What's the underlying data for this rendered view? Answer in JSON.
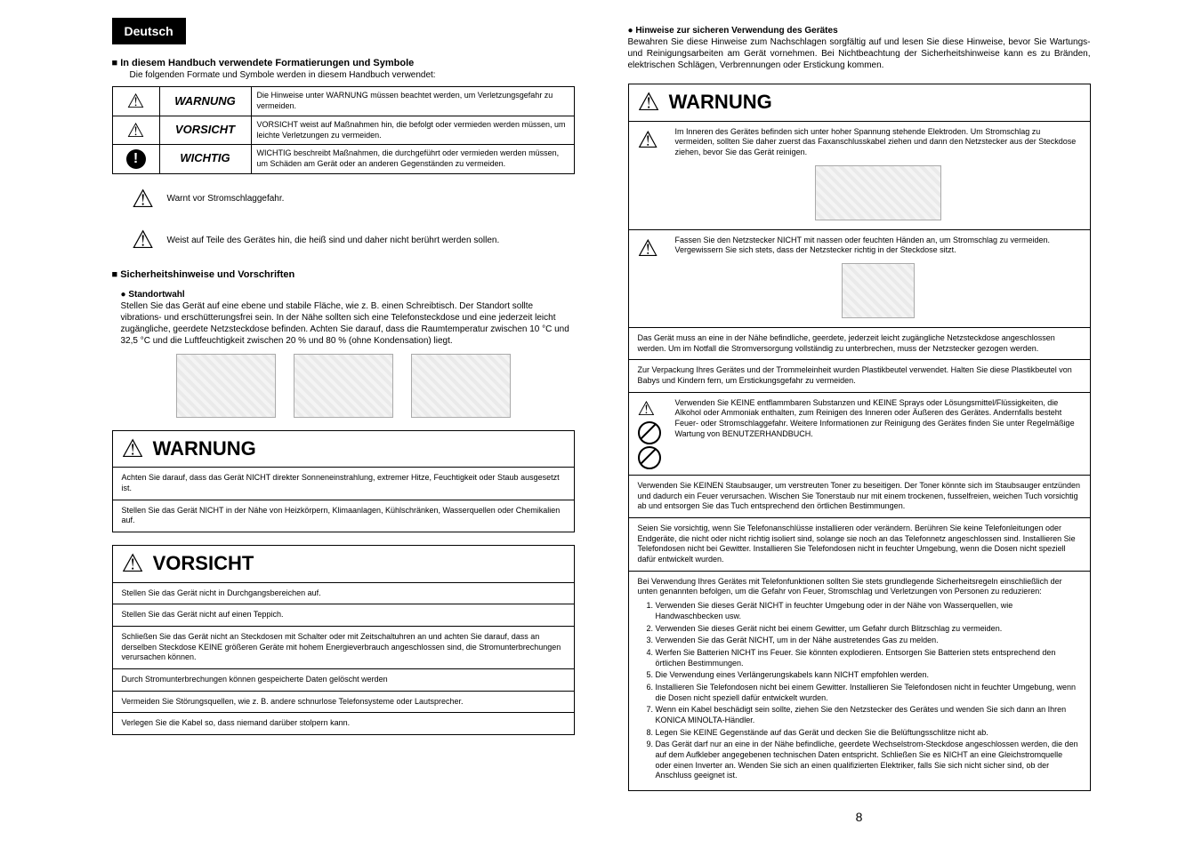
{
  "tab": "Deutsch",
  "sec1": {
    "title": "In diesem Handbuch verwendete Formatierungen und Symbole",
    "intro": "Die folgenden Formate und Symbole werden in diesem Handbuch verwendet:",
    "rows": [
      {
        "label": "WARNUNG",
        "desc": "Die Hinweise unter WARNUNG müssen beachtet werden, um Verletzungsgefahr zu vermeiden."
      },
      {
        "label": "VORSICHT",
        "desc": "VORSICHT weist auf Maßnahmen hin, die befolgt oder vermieden werden müssen, um leichte Verletzungen zu vermeiden."
      },
      {
        "label": "WICHTIG",
        "desc": "WICHTIG beschreibt Maßnahmen, die durchgeführt oder vermieden werden müssen, um Schäden am Gerät oder an anderen Gegenständen zu vermeiden."
      }
    ],
    "shock": "Warnt vor Stromschlaggefahr.",
    "hot": "Weist auf Teile des Gerätes hin, die heiß sind und daher nicht berührt werden sollen."
  },
  "sec2": {
    "title": "Sicherheitshinweise und Vorschriften",
    "sub": "Standortwahl",
    "text": "Stellen Sie das Gerät auf eine ebene und stabile Fläche, wie z. B. einen Schreibtisch. Der Standort sollte vibrations- und erschütterungsfrei sein. In der Nähe sollten sich eine Telefonsteckdose und eine jederzeit leicht zugängliche, geerdete Netzsteckdose befinden. Achten Sie darauf, dass die Raumtemperatur zwischen 10 °C und 32,5 °C und die Luftfeuchtigkeit zwischen 20 % und 80 % (ohne Kondensation) liegt."
  },
  "wbox": {
    "title": "WARNUNG",
    "r1": "Achten Sie darauf, dass das Gerät NICHT direkter Sonneneinstrahlung, extremer Hitze, Feuchtigkeit oder Staub ausgesetzt ist.",
    "r2": "Stellen Sie das Gerät NICHT in der Nähe von Heizkörpern, Klimaanlagen, Kühlschränken, Wasserquellen oder Chemikalien auf."
  },
  "vbox": {
    "title": "VORSICHT",
    "r1": "Stellen Sie das Gerät nicht in Durchgangsbereichen auf.",
    "r2": "Stellen Sie das Gerät nicht auf einen Teppich.",
    "r3": "Schließen Sie das Gerät nicht an Steckdosen mit Schalter oder mit Zeitschaltuhren an und achten Sie darauf, dass an derselben Steckdose KEINE größeren Geräte mit hohem Energieverbrauch angeschlossen sind, die Stromunterbrechungen verursachen können.",
    "r4": "Durch Stromunterbrechungen können gespeicherte Daten gelöscht werden",
    "r5": "Vermeiden Sie Störungsquellen, wie z. B. andere schnurlose Telefonsysteme oder Lautsprecher.",
    "r6": "Verlegen Sie die Kabel so, dass niemand darüber stolpern kann."
  },
  "right": {
    "sub": "Hinweise zur sicheren Verwendung des Gerätes",
    "intro": "Bewahren Sie diese Hinweise zum Nachschlagen sorgfältig auf und lesen Sie diese Hinweise, bevor Sie Wartungs- und Reinigungsarbeiten am Gerät vornehmen. Bei Nichtbeachtung der Sicherheitshinweise kann es zu Bränden, elektrischen Schlägen, Verbrennungen oder Erstickung kommen.",
    "wtitle": "WARNUNG",
    "r1": "Im Inneren des Gerätes befinden sich unter hoher Spannung stehende Elektroden. Um Stromschlag zu vermeiden, sollten Sie daher zuerst das Faxanschlusskabel ziehen und dann den Netzstecker aus der Steckdose ziehen, bevor Sie das Gerät reinigen.",
    "r2": "Fassen Sie den Netzstecker NICHT mit nassen oder feuchten Händen an, um Stromschlag zu vermeiden. Vergewissern Sie sich stets, dass der Netzstecker richtig in der Steckdose sitzt.",
    "r3": "Das Gerät muss an eine in der Nähe befindliche, geerdete, jederzeit leicht zugängliche Netzsteckdose angeschlossen werden. Um im Notfall die Stromversorgung vollständig zu unterbrechen, muss der Netzstecker gezogen werden.",
    "r4": "Zur Verpackung Ihres Gerätes und der Trommeleinheit wurden Plastikbeutel verwendet. Halten Sie diese Plastikbeutel von Babys und Kindern fern, um Erstickungsgefahr zu vermeiden.",
    "r5": "Verwenden Sie KEINE entflammbaren Substanzen und KEINE Sprays oder Lösungsmittel/Flüssigkeiten, die Alkohol oder Ammoniak enthalten, zum Reinigen des Inneren oder Äußeren des Gerätes. Andernfalls besteht Feuer- oder Stromschlaggefahr. Weitere Informationen zur Reinigung des Gerätes finden Sie unter Regelmäßige Wartung von BENUTZERHANDBUCH.",
    "r6": "Verwenden Sie KEINEN Staubsauger, um verstreuten Toner zu beseitigen. Der Toner könnte sich im Staubsauger entzünden und dadurch ein Feuer verursachen. Wischen Sie Tonerstaub nur mit einem trockenen, fusselfreien, weichen Tuch vorsichtig ab und entsorgen Sie das Tuch entsprechend den örtlichen Bestimmungen.",
    "r7": "Seien Sie vorsichtig, wenn Sie Telefonanschlüsse installieren oder verändern. Berühren Sie keine Telefonleitungen oder Endgeräte, die nicht oder nicht richtig isoliert sind, solange sie noch an das Telefonnetz angeschlossen sind. Installieren Sie Telefondosen nicht bei Gewitter. Installieren Sie Telefondosen nicht in feuchter Umgebung, wenn die Dosen nicht speziell dafür entwickelt wurden.",
    "r8": "Bei Verwendung Ihres Gerätes mit Telefonfunktionen sollten Sie stets grundlegende Sicherheitsregeln einschließlich der unten genannten befolgen, um die Gefahr von Feuer, Stromschlag und Verletzungen von Personen zu reduzieren:",
    "ol": [
      "Verwenden Sie dieses Gerät NICHT in feuchter Umgebung oder in der Nähe von Wasserquellen, wie Handwaschbecken usw.",
      "Verwenden Sie dieses Gerät nicht bei einem Gewitter, um Gefahr durch Blitzschlag zu vermeiden.",
      "Verwenden Sie das Gerät NICHT, um in der Nähe austretendes Gas zu melden.",
      "Werfen Sie Batterien NICHT ins Feuer. Sie könnten explodieren. Entsorgen Sie Batterien stets entsprechend den örtlichen Bestimmungen.",
      "Die Verwendung eines Verlängerungskabels kann NICHT empfohlen werden.",
      "Installieren Sie Telefondosen nicht bei einem Gewitter. Installieren Sie Telefondosen nicht in feuchter Umgebung, wenn die Dosen nicht speziell dafür entwickelt wurden.",
      "Wenn ein Kabel beschädigt sein sollte, ziehen Sie den Netzstecker des Gerätes und wenden Sie sich dann an Ihren KONICA MINOLTA-Händler.",
      "Legen Sie KEINE Gegenstände auf das Gerät und decken Sie die Belüftungsschlitze nicht ab.",
      "Das Gerät darf nur an eine in der Nähe befindliche, geerdete Wechselstrom-Steckdose angeschlossen werden, die den auf dem Aufkleber angegebenen technischen Daten entspricht. Schließen Sie es NICHT an eine Gleichstromquelle oder einen Inverter an. Wenden Sie sich an einen qualifizierten Elektriker, falls Sie sich nicht sicher sind, ob der Anschluss geeignet ist."
    ]
  },
  "colors": {
    "black": "#000000",
    "white": "#ffffff"
  }
}
